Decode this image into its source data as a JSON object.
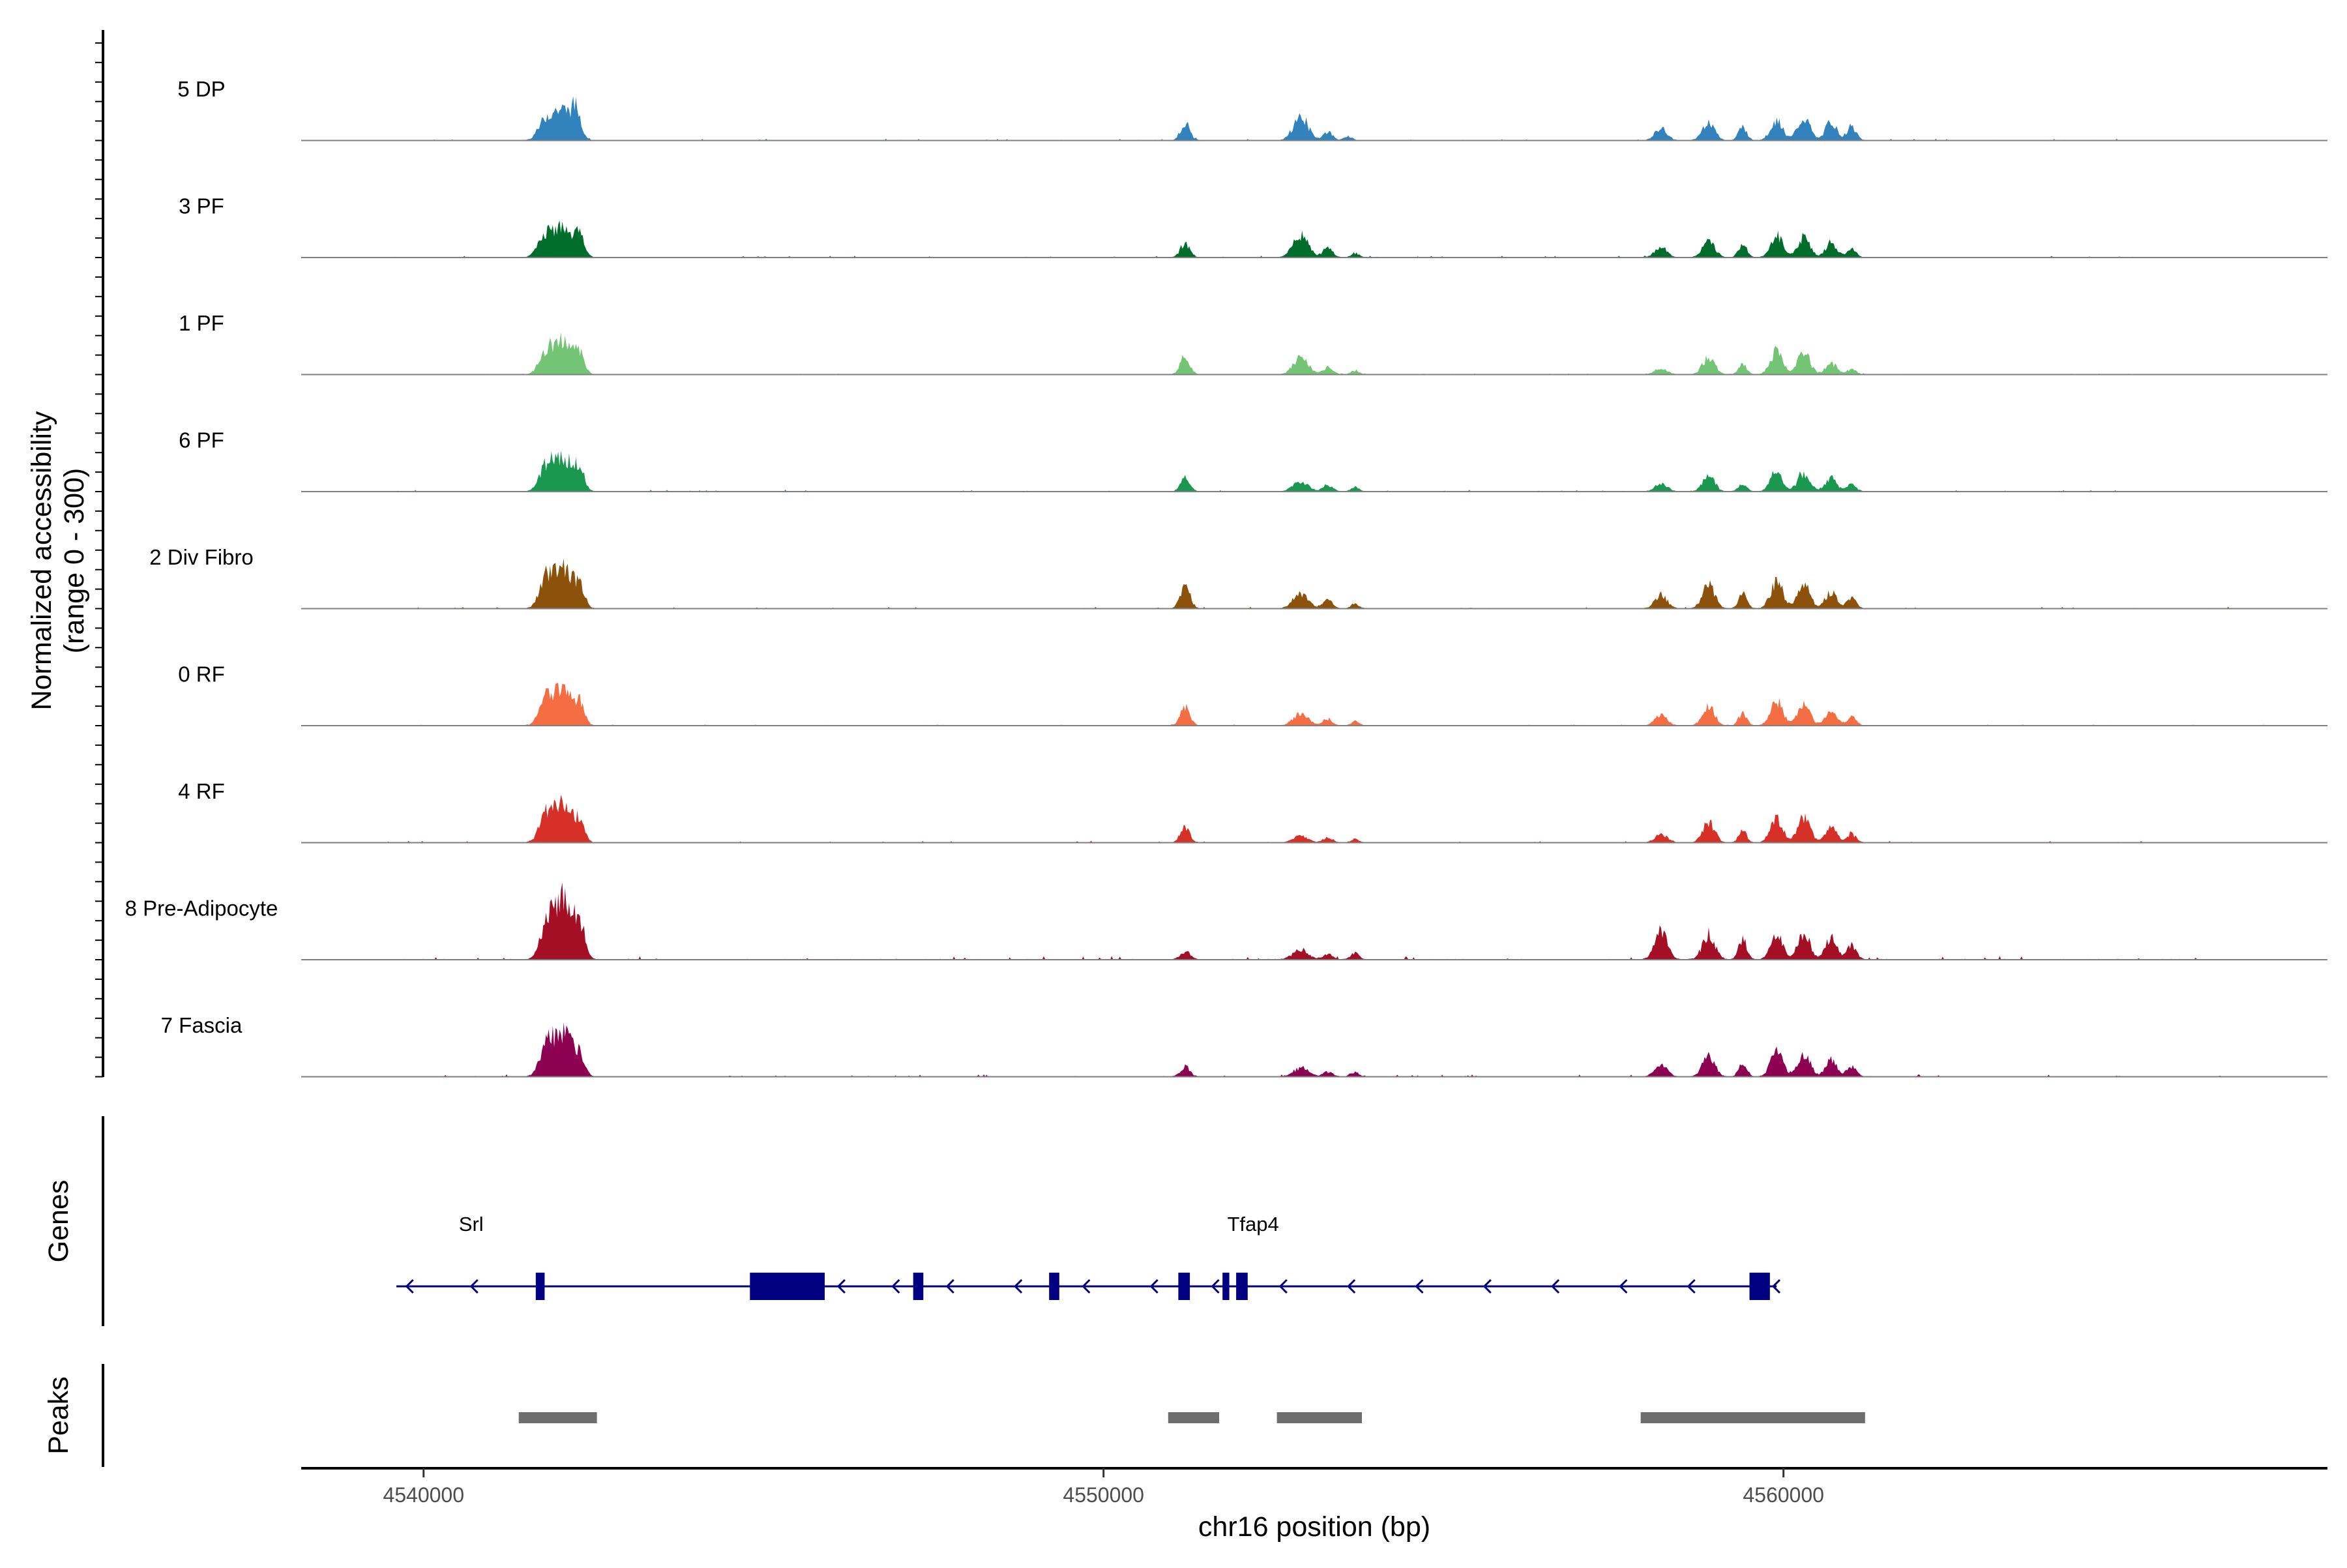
{
  "chart_data": {
    "type": "area",
    "title": "",
    "ylabel_line1": "Normalized accessibility",
    "ylabel_line2": "(range 0 - 300)",
    "ylim": [
      0,
      300
    ],
    "xlabel": "chr16 position (bp)",
    "xlim": [
      4538200,
      4568000
    ],
    "x_ticks": [
      4540000,
      4550000,
      4560000
    ],
    "x_tick_labels": [
      "4540000",
      "4550000",
      "4560000"
    ],
    "tracks": [
      {
        "name": "5 DP",
        "color": "#3182BD",
        "noise": 3,
        "extent": [
          4539400,
          4565400
        ],
        "peaks": [
          [
            4541800,
            0.22,
            110
          ],
          [
            4542050,
            0.35,
            140
          ],
          [
            4542250,
            0.28,
            70
          ],
          [
            4551200,
            0.2,
            70
          ],
          [
            4552900,
            0.28,
            110
          ],
          [
            4553300,
            0.1,
            70
          ],
          [
            4553600,
            0.05,
            60
          ],
          [
            4558200,
            0.14,
            90
          ],
          [
            4558900,
            0.22,
            90
          ],
          [
            4559400,
            0.16,
            60
          ],
          [
            4559900,
            0.24,
            90
          ],
          [
            4560300,
            0.26,
            90
          ],
          [
            4560700,
            0.22,
            80
          ],
          [
            4561000,
            0.16,
            70
          ]
        ]
      },
      {
        "name": "3 PF",
        "color": "#006D2C",
        "noise": 3,
        "extent": [
          4539400,
          4565400
        ],
        "peaks": [
          [
            4541800,
            0.24,
            110
          ],
          [
            4542050,
            0.32,
            140
          ],
          [
            4542300,
            0.22,
            70
          ],
          [
            4551200,
            0.16,
            70
          ],
          [
            4552900,
            0.26,
            110
          ],
          [
            4553300,
            0.12,
            70
          ],
          [
            4553700,
            0.05,
            60
          ],
          [
            4558200,
            0.12,
            90
          ],
          [
            4558900,
            0.2,
            90
          ],
          [
            4559400,
            0.16,
            60
          ],
          [
            4559900,
            0.26,
            90
          ],
          [
            4560300,
            0.24,
            90
          ],
          [
            4560700,
            0.18,
            80
          ],
          [
            4561000,
            0.1,
            70
          ]
        ]
      },
      {
        "name": "1 PF",
        "color": "#74C476",
        "noise": 2,
        "extent": [
          4539400,
          4565400
        ],
        "peaks": [
          [
            4541800,
            0.24,
            100
          ],
          [
            4542050,
            0.38,
            140
          ],
          [
            4542300,
            0.2,
            70
          ],
          [
            4551200,
            0.22,
            70
          ],
          [
            4552900,
            0.2,
            110
          ],
          [
            4553300,
            0.08,
            70
          ],
          [
            4553700,
            0.05,
            60
          ],
          [
            4558200,
            0.08,
            90
          ],
          [
            4558900,
            0.2,
            90
          ],
          [
            4559400,
            0.12,
            60
          ],
          [
            4559900,
            0.28,
            90
          ],
          [
            4560300,
            0.26,
            90
          ],
          [
            4560700,
            0.14,
            80
          ],
          [
            4561000,
            0.06,
            70
          ]
        ]
      },
      {
        "name": "6 PF",
        "color": "#1A9850",
        "noise": 3,
        "extent": [
          4539400,
          4565400
        ],
        "peaks": [
          [
            4541800,
            0.26,
            100
          ],
          [
            4542050,
            0.42,
            140
          ],
          [
            4542300,
            0.22,
            70
          ],
          [
            4551200,
            0.16,
            70
          ],
          [
            4552900,
            0.12,
            110
          ],
          [
            4553300,
            0.08,
            70
          ],
          [
            4553700,
            0.05,
            60
          ],
          [
            4558200,
            0.1,
            90
          ],
          [
            4558900,
            0.18,
            90
          ],
          [
            4559400,
            0.1,
            60
          ],
          [
            4559900,
            0.24,
            90
          ],
          [
            4560300,
            0.22,
            90
          ],
          [
            4560700,
            0.16,
            80
          ],
          [
            4561000,
            0.08,
            70
          ]
        ]
      },
      {
        "name": "2 Div Fibro",
        "color": "#8C510A",
        "noise": 3,
        "extent": [
          4539400,
          4567200
        ],
        "peaks": [
          [
            4541800,
            0.3,
            100
          ],
          [
            4542050,
            0.5,
            140
          ],
          [
            4542300,
            0.22,
            70
          ],
          [
            4551200,
            0.28,
            70
          ],
          [
            4552900,
            0.18,
            110
          ],
          [
            4553300,
            0.1,
            70
          ],
          [
            4553700,
            0.05,
            60
          ],
          [
            4558200,
            0.16,
            90
          ],
          [
            4558900,
            0.28,
            90
          ],
          [
            4559400,
            0.18,
            60
          ],
          [
            4559900,
            0.32,
            90
          ],
          [
            4560300,
            0.3,
            90
          ],
          [
            4560700,
            0.2,
            80
          ],
          [
            4561000,
            0.12,
            70
          ]
        ]
      },
      {
        "name": "0 RF",
        "color": "#F46D43",
        "noise": 2,
        "extent": [
          4539400,
          4567200
        ],
        "peaks": [
          [
            4541800,
            0.26,
            100
          ],
          [
            4542050,
            0.46,
            140
          ],
          [
            4542300,
            0.2,
            70
          ],
          [
            4551200,
            0.22,
            70
          ],
          [
            4552900,
            0.14,
            110
          ],
          [
            4553300,
            0.08,
            70
          ],
          [
            4553700,
            0.05,
            60
          ],
          [
            4558200,
            0.12,
            90
          ],
          [
            4558900,
            0.22,
            90
          ],
          [
            4559400,
            0.14,
            60
          ],
          [
            4559900,
            0.3,
            90
          ],
          [
            4560300,
            0.28,
            90
          ],
          [
            4560700,
            0.18,
            80
          ],
          [
            4561000,
            0.1,
            70
          ]
        ]
      },
      {
        "name": "4 RF",
        "color": "#D73027",
        "noise": 3,
        "extent": [
          4539400,
          4565400
        ],
        "peaks": [
          [
            4541800,
            0.28,
            100
          ],
          [
            4542050,
            0.44,
            140
          ],
          [
            4542300,
            0.2,
            70
          ],
          [
            4551200,
            0.18,
            70
          ],
          [
            4552900,
            0.08,
            110
          ],
          [
            4553300,
            0.06,
            70
          ],
          [
            4553700,
            0.04,
            60
          ],
          [
            4558200,
            0.1,
            90
          ],
          [
            4558900,
            0.24,
            90
          ],
          [
            4559400,
            0.14,
            60
          ],
          [
            4559900,
            0.28,
            90
          ],
          [
            4560300,
            0.3,
            90
          ],
          [
            4560700,
            0.18,
            80
          ],
          [
            4561000,
            0.1,
            70
          ]
        ]
      },
      {
        "name": "8 Pre-Adipocyte",
        "color": "#A50F26",
        "noise": 6,
        "extent": [
          4539400,
          4566400
        ],
        "peaks": [
          [
            4541800,
            0.3,
            100
          ],
          [
            4542050,
            0.74,
            140
          ],
          [
            4542300,
            0.36,
            70
          ],
          [
            4551200,
            0.1,
            70
          ],
          [
            4552900,
            0.12,
            110
          ],
          [
            4553300,
            0.06,
            70
          ],
          [
            4553700,
            0.08,
            60
          ],
          [
            4558200,
            0.34,
            90
          ],
          [
            4558900,
            0.3,
            90
          ],
          [
            4559400,
            0.24,
            60
          ],
          [
            4559900,
            0.28,
            90
          ],
          [
            4560300,
            0.3,
            90
          ],
          [
            4560700,
            0.26,
            80
          ],
          [
            4561000,
            0.16,
            70
          ]
        ]
      },
      {
        "name": "7 Fascia",
        "color": "#8E0152",
        "noise": 4,
        "extent": [
          4539400,
          4567200
        ],
        "peaks": [
          [
            4541800,
            0.3,
            100
          ],
          [
            4542050,
            0.52,
            140
          ],
          [
            4542300,
            0.2,
            70
          ],
          [
            4551200,
            0.12,
            70
          ],
          [
            4552900,
            0.1,
            110
          ],
          [
            4553300,
            0.06,
            70
          ],
          [
            4553700,
            0.05,
            60
          ],
          [
            4558200,
            0.14,
            90
          ],
          [
            4558900,
            0.24,
            90
          ],
          [
            4559400,
            0.16,
            60
          ],
          [
            4559900,
            0.3,
            90
          ],
          [
            4560300,
            0.28,
            90
          ],
          [
            4560700,
            0.2,
            80
          ],
          [
            4561000,
            0.12,
            70
          ]
        ]
      }
    ],
    "genes": {
      "title": "Genes",
      "color": "#000080",
      "items": [
        {
          "name": "Srl",
          "label_x": 4540700,
          "line": [
            4539600,
            4541800
          ],
          "exons": [
            [
              4541650,
              4541780
            ]
          ],
          "arrows": [
            4539750,
            4540700
          ]
        },
        {
          "name": "Tfap4",
          "label_x": 4552200,
          "line": [
            4541800,
            4559900
          ],
          "exons": [
            [
              4544800,
              4545900
            ],
            [
              4547200,
              4547350
            ],
            [
              4549200,
              4549350
            ],
            [
              4551100,
              4551270
            ],
            [
              4551750,
              4551850
            ],
            [
              4551950,
              4552120
            ],
            [
              4559500,
              4559800
            ]
          ],
          "arrows": [
            4546100,
            4546900,
            4547700,
            4548700,
            4549700,
            4550700,
            4551600,
            4552600,
            4553600,
            4554600,
            4555600,
            4556600,
            4557600,
            4558600,
            4559850
          ]
        }
      ]
    },
    "peaks_track": {
      "title": "Peaks",
      "color": "#6E6E6E",
      "regions": [
        [
          4541400,
          4542550
        ],
        [
          4550950,
          4551700
        ],
        [
          4552550,
          4553800
        ],
        [
          4557900,
          4561200
        ]
      ]
    }
  }
}
